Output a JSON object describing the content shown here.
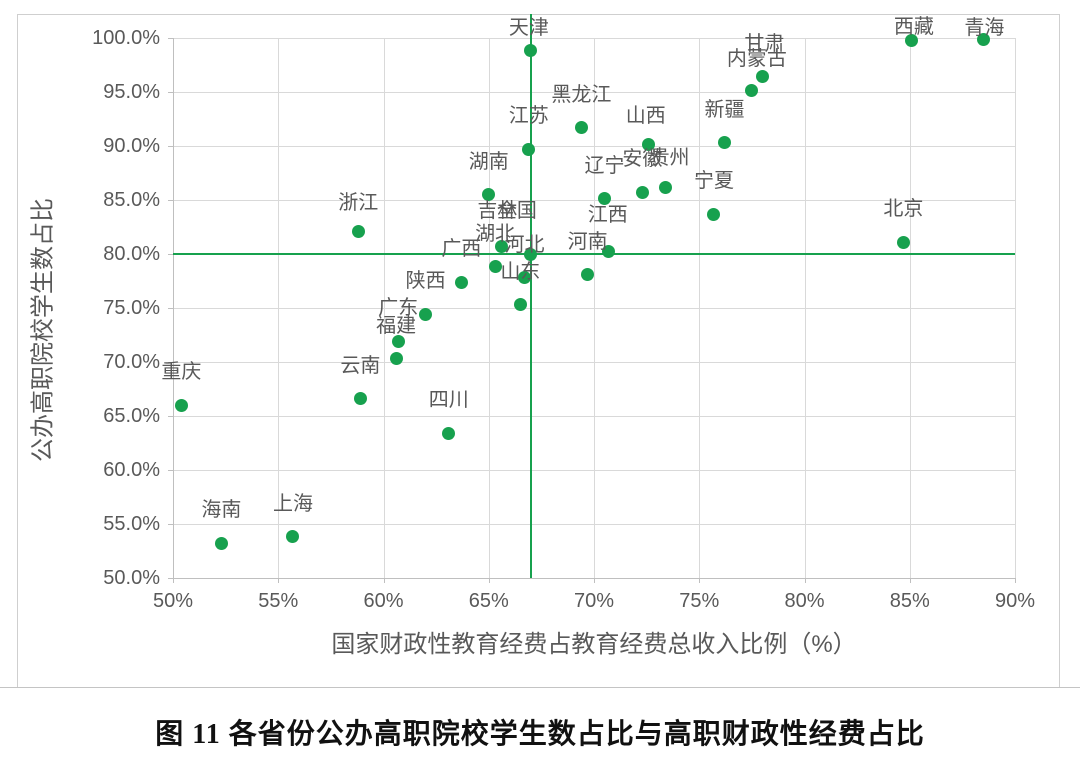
{
  "figure": {
    "caption": "图 11 各省份公办高职院校学生数占比与高职财政性经费占比"
  },
  "chart_data": {
    "type": "scatter",
    "title": "",
    "xlabel": "国家财政性教育经费占教育经费总收入比例（%）",
    "ylabel": "公办高职院校学生数占比",
    "xlim": [
      50,
      90
    ],
    "ylim": [
      50,
      100
    ],
    "grid": true,
    "legend": "none",
    "x_tick_values": [
      50,
      55,
      60,
      65,
      70,
      75,
      80,
      85,
      90
    ],
    "x_tick_labels": [
      "50%",
      "55%",
      "60%",
      "65%",
      "70%",
      "75%",
      "80%",
      "85%",
      "90%"
    ],
    "y_tick_values": [
      100,
      95,
      90,
      85,
      80,
      75,
      70,
      65,
      60,
      55,
      50
    ],
    "y_tick_labels": [
      "100.0%",
      "95.0%",
      "90.0%",
      "85.0%",
      "80.0%",
      "75.0%",
      "70.0%",
      "65.0%",
      "60.0%",
      "55.0%",
      "50.0%"
    ],
    "reference_lines": {
      "x": 67.0,
      "y": 80.0
    },
    "colors": {
      "point": "#17a14e",
      "reference_line": "#17a14e",
      "gridline": "#d9d9d9",
      "axis_text": "#595959",
      "caption_text": "#111111"
    },
    "points": [
      {
        "name": "重庆",
        "x": 50.4,
        "y": 66.0
      },
      {
        "name": "海南",
        "x": 52.3,
        "y": 53.2
      },
      {
        "name": "上海",
        "x": 55.7,
        "y": 53.8
      },
      {
        "name": "浙江",
        "x": 58.8,
        "y": 82.1,
        "label_offset": [
          0,
          -28
        ]
      },
      {
        "name": "云南",
        "x": 58.9,
        "y": 66.6
      },
      {
        "name": "福建",
        "x": 60.6,
        "y": 70.3
      },
      {
        "name": "广东",
        "x": 60.7,
        "y": 71.9
      },
      {
        "name": "陕西",
        "x": 62.0,
        "y": 74.4
      },
      {
        "name": "四川",
        "x": 63.1,
        "y": 63.4
      },
      {
        "name": "广西",
        "x": 63.7,
        "y": 77.4
      },
      {
        "name": "湖南",
        "x": 65.0,
        "y": 85.5
      },
      {
        "name": "湖北",
        "x": 65.3,
        "y": 78.8
      },
      {
        "name": "吉林",
        "x": 65.6,
        "y": 80.7,
        "label_offset": [
          -4,
          -35
        ]
      },
      {
        "name": "山东",
        "x": 66.5,
        "y": 75.3
      },
      {
        "name": "河北",
        "x": 66.7,
        "y": 77.8
      },
      {
        "name": "江苏",
        "x": 66.9,
        "y": 89.7
      },
      {
        "name": "全国",
        "x": 67.0,
        "y": 80.0,
        "label_offset": [
          -14,
          -43
        ]
      },
      {
        "name": "天津",
        "x": 67.0,
        "y": 98.8,
        "label_offset": [
          -2,
          -23
        ]
      },
      {
        "name": "黑龙江",
        "x": 69.4,
        "y": 91.7
      },
      {
        "name": "河南",
        "x": 69.7,
        "y": 78.1
      },
      {
        "name": "辽宁",
        "x": 70.5,
        "y": 85.1
      },
      {
        "name": "江西",
        "x": 70.7,
        "y": 80.2,
        "label_offset": [
          -1,
          -37
        ]
      },
      {
        "name": "安徽",
        "x": 72.3,
        "y": 85.7
      },
      {
        "name": "山西",
        "x": 72.6,
        "y": 90.1,
        "label_offset": [
          -3,
          -29
        ]
      },
      {
        "name": "贵州",
        "x": 73.4,
        "y": 86.2,
        "label_offset": [
          4,
          -29
        ]
      },
      {
        "name": "宁夏",
        "x": 75.7,
        "y": 83.7
      },
      {
        "name": "新疆",
        "x": 76.2,
        "y": 90.3
      },
      {
        "name": "内蒙古",
        "x": 77.5,
        "y": 95.1,
        "label_offset": [
          5,
          -32
        ]
      },
      {
        "name": "甘肃",
        "x": 78.0,
        "y": 96.4,
        "label_offset": [
          2,
          -33
        ]
      },
      {
        "name": "北京",
        "x": 84.7,
        "y": 81.1
      },
      {
        "name": "西藏",
        "x": 85.1,
        "y": 99.8,
        "label_offset": [
          2,
          -13
        ]
      },
      {
        "name": "青海",
        "x": 88.5,
        "y": 99.9,
        "label_offset": [
          1,
          -11
        ]
      }
    ]
  }
}
